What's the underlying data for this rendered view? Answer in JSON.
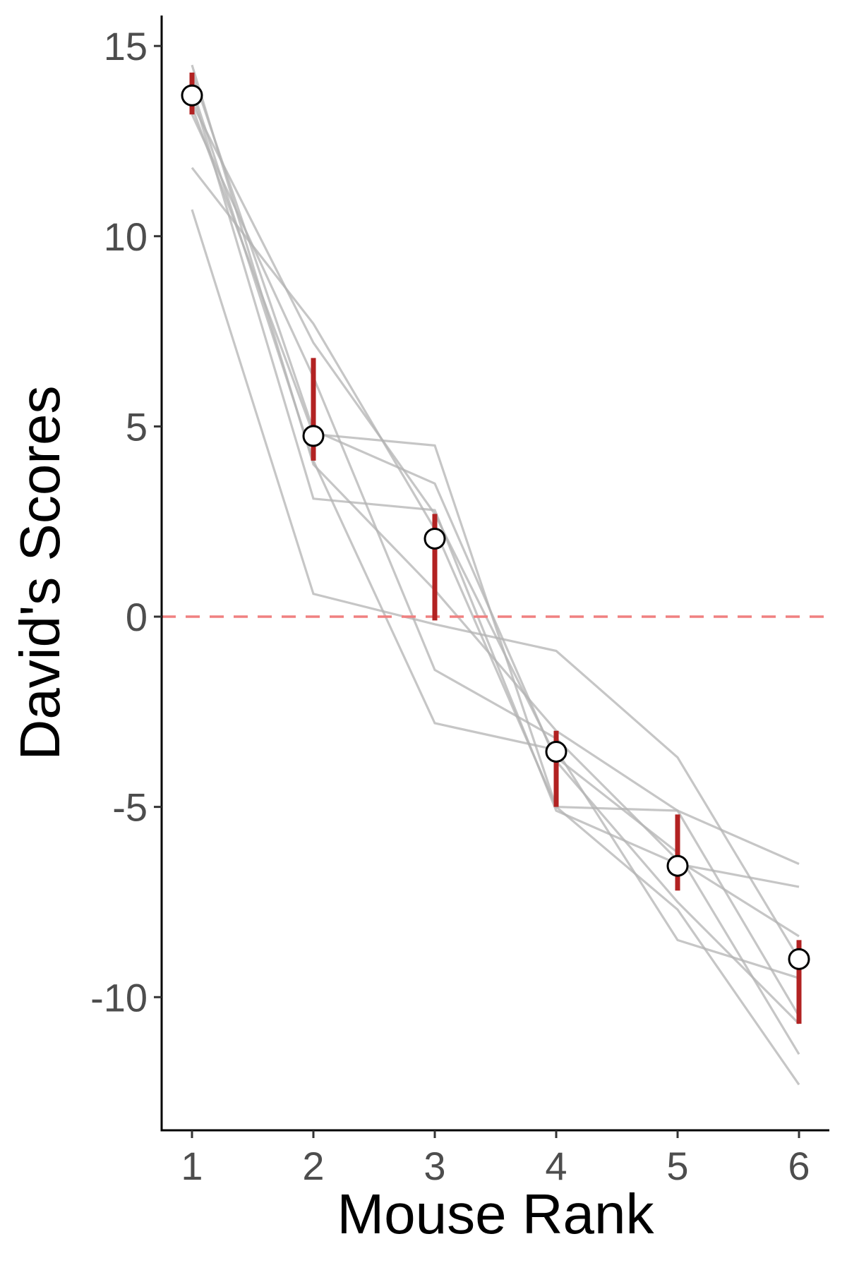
{
  "chart_data": {
    "type": "line",
    "xlabel": "Mouse Rank",
    "ylabel": "David's Scores",
    "x": [
      1,
      2,
      3,
      4,
      5,
      6
    ],
    "xlim": [
      0.75,
      6.25
    ],
    "ylim": [
      -13.5,
      15.8
    ],
    "yticks": [
      15,
      10,
      5,
      0,
      -5,
      -10
    ],
    "ytick_labels": [
      "15",
      "10",
      "5",
      "0",
      "-5",
      "-10"
    ],
    "xtick_labels": [
      "1",
      "2",
      "3",
      "4",
      "5",
      "6"
    ],
    "reference_line": {
      "y": 0,
      "style": "dashed",
      "color": "#f08080"
    },
    "individual_lines": [
      [
        14.5,
        4.0,
        0.7,
        -3.0,
        -5.1,
        -6.5
      ],
      [
        14.3,
        4.9,
        3.5,
        -3.8,
        -7.5,
        -10.7
      ],
      [
        13.8,
        3.1,
        2.8,
        -5.1,
        -6.5,
        -7.1
      ],
      [
        13.5,
        7.2,
        2.7,
        -3.7,
        -6.2,
        -11.5
      ],
      [
        13.4,
        4.8,
        4.5,
        -5.0,
        -5.1,
        -10.5
      ],
      [
        13.2,
        6.3,
        -1.4,
        -3.2,
        -6.4,
        -8.4
      ],
      [
        11.8,
        7.7,
        2.3,
        -5.0,
        -7.7,
        -12.3
      ],
      [
        10.7,
        0.6,
        -0.2,
        -0.9,
        -3.7,
        -9.0
      ],
      [
        13.9,
        4.1,
        -2.8,
        -3.5,
        -8.5,
        -9.5
      ]
    ],
    "individual_line_color": "#b3b3b3",
    "mean_points": [
      13.7,
      4.75,
      2.05,
      -3.55,
      -6.55,
      -9.0
    ],
    "error_bars": [
      [
        13.2,
        14.3
      ],
      [
        4.1,
        6.8
      ],
      [
        -0.1,
        2.7
      ],
      [
        -5.0,
        -3.0
      ],
      [
        -7.2,
        -5.2
      ],
      [
        -10.7,
        -8.5
      ]
    ],
    "error_bar_color": "#b22222",
    "point_fill": "#ffffff",
    "point_stroke": "#000000",
    "grid": false
  }
}
